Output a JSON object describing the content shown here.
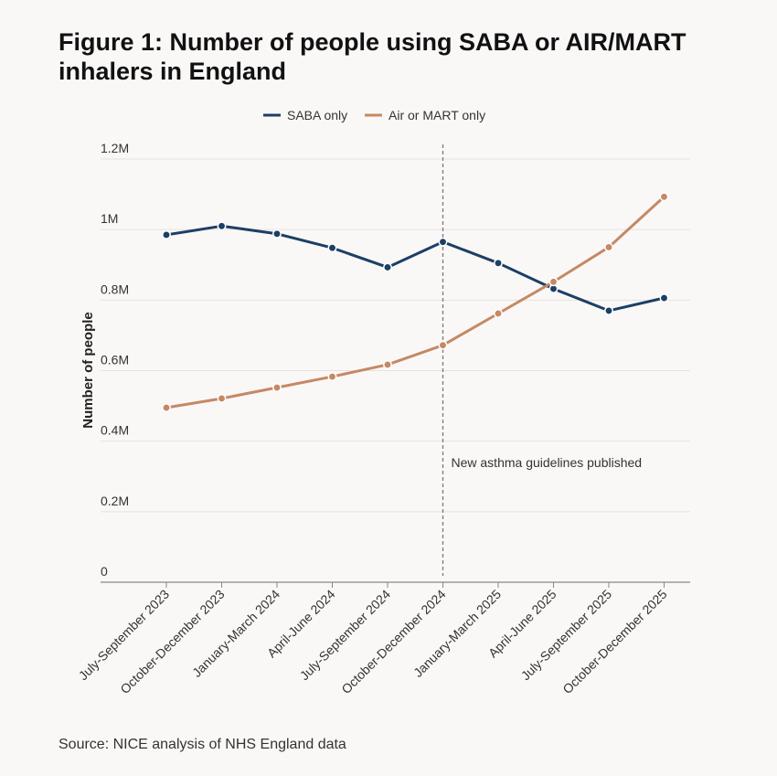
{
  "title": "Figure 1: Number of people using SABA or AIR/MART inhalers in England",
  "source": "Source: NICE analysis of NHS England data",
  "colors": {
    "saba": "#1c3f66",
    "air_mart": "#c68865",
    "grid": "#e6e2e0",
    "axis": "#888888",
    "marker_line": "#7a7a7a"
  },
  "chart_data": {
    "type": "line",
    "title": "Figure 1: Number of people using SABA or AIR/MART inhalers in England",
    "xlabel": "",
    "ylabel": "Number of people",
    "ylim": [
      0,
      1200000
    ],
    "yticks": [
      {
        "value": 0,
        "label": "0"
      },
      {
        "value": 200000,
        "label": "0.2M"
      },
      {
        "value": 400000,
        "label": "0.4M"
      },
      {
        "value": 600000,
        "label": "0.6M"
      },
      {
        "value": 800000,
        "label": "0.8M"
      },
      {
        "value": 1000000,
        "label": "1M"
      },
      {
        "value": 1200000,
        "label": "1.2M"
      }
    ],
    "grid": true,
    "legend_position": "top-center",
    "categories": [
      "July-September 2023",
      "October-December 2023",
      "January-March 2024",
      "April-June 2024",
      "July-September 2024",
      "October-December 2024",
      "January-March 2025",
      "April-June 2025",
      "July-September 2025",
      "October-December 2025"
    ],
    "series": [
      {
        "name": "SABA only",
        "color": "#1c3f66",
        "values": [
          985000,
          1010000,
          988000,
          948000,
          893000,
          965000,
          905000,
          832000,
          770000,
          806000
        ]
      },
      {
        "name": "Air or MART only",
        "color": "#c68865",
        "values": [
          495000,
          521000,
          552000,
          583000,
          617000,
          672000,
          762000,
          852000,
          950000,
          1093000
        ]
      }
    ],
    "annotations": [
      {
        "category": "October-December 2024",
        "text": "New asthma guidelines published"
      }
    ]
  }
}
